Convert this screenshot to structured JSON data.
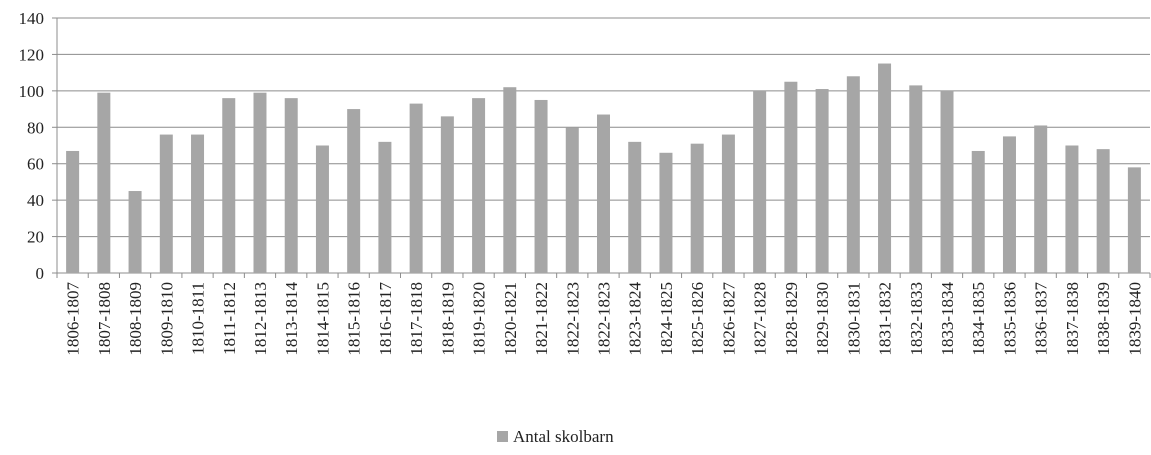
{
  "chart_data": {
    "type": "bar",
    "categories": [
      "1806-1807",
      "1807-1808",
      "1808-1809",
      "1809-1810",
      "1810-1811",
      "1811-1812",
      "1812-1813",
      "1813-1814",
      "1814-1815",
      "1815-1816",
      "1816-1817",
      "1817-1818",
      "1818-1819",
      "1819-1820",
      "1820-1821",
      "1821-1822",
      "1822-1823",
      "1822-1823",
      "1823-1824",
      "1824-1825",
      "1825-1826",
      "1826-1827",
      "1827-1828",
      "1828-1829",
      "1829-1830",
      "1830-1831",
      "1831-1832",
      "1832-1833",
      "1833-1834",
      "1834-1835",
      "1835-1836",
      "1836-1837",
      "1837-1838",
      "1838-1839",
      "1839-1840"
    ],
    "series": [
      {
        "name": "Antal skolbarn",
        "color": "#a6a6a6",
        "values": [
          67,
          99,
          45,
          76,
          76,
          96,
          99,
          96,
          70,
          90,
          72,
          93,
          86,
          96,
          102,
          95,
          80,
          87,
          72,
          66,
          71,
          76,
          100,
          105,
          101,
          108,
          115,
          103,
          100,
          67,
          75,
          81,
          70,
          68,
          58
        ]
      }
    ],
    "ylim": [
      0,
      140
    ],
    "yticks": [
      "0",
      "20",
      "40",
      "60",
      "80",
      "100",
      "120",
      "140"
    ],
    "grid": true,
    "legend_position": "bottom",
    "title": "",
    "xlabel": "",
    "ylabel": ""
  }
}
